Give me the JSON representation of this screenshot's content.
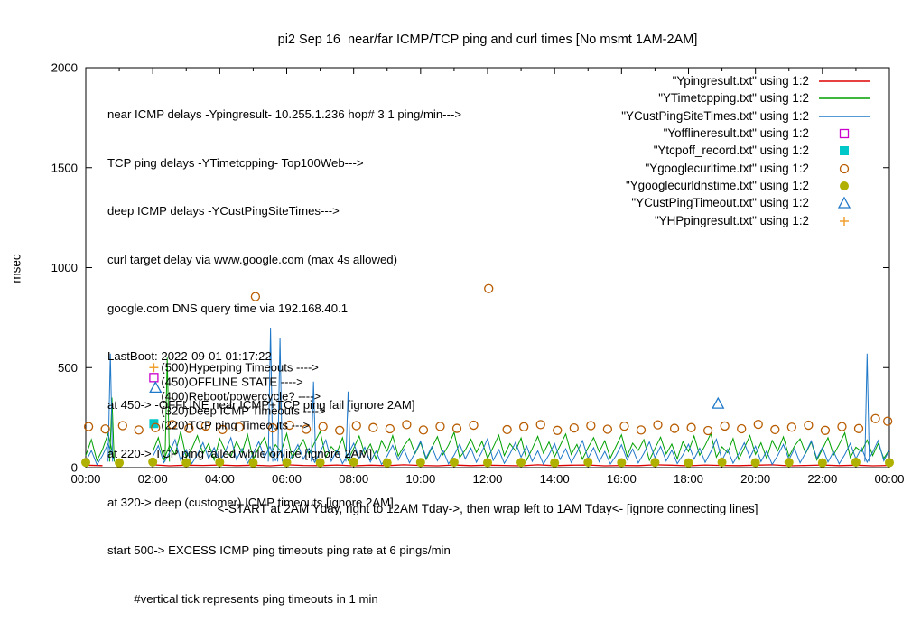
{
  "chart_data": {
    "type": "line",
    "title": "pi2 Sep 16  near/far ICMP/TCP ping and curl times [No msmt 1AM-2AM]",
    "ylabel": "msec",
    "xlabel": "<-START at 2AM Yday, right to 12AM Tday->, then wrap left to 1AM Tday<- [ignore connecting lines]",
    "ylim": [
      0,
      2000
    ],
    "x_minutes_range": [
      0,
      1440
    ],
    "x_ticks": [
      "00:00",
      "02:00",
      "04:00",
      "06:00",
      "08:00",
      "10:00",
      "12:00",
      "14:00",
      "16:00",
      "18:00",
      "20:00",
      "22:00",
      "00:00"
    ],
    "y_ticks": [
      0,
      500,
      1000,
      1500,
      2000
    ],
    "grid": false,
    "legend_position": "top-right",
    "annotations": [
      "near ICMP delays -Ypingresult- 10.255.1.236 hop# 3 1 ping/min--->",
      "TCP ping delays -YTimetcpping- Top100Web--->",
      "deep ICMP delays -YCustPingSiteTimes--->",
      "curl target delay via www.google.com (max 4s allowed)",
      "google.com DNS query time via 192.168.40.1",
      "LastBoot: 2022-09-01 01:17:22",
      "at 450-> -OFFLINE near ICMP+TCP ping fail [ignore 2AM]",
      "at 220-> TCP ping failed while online [ignore 2AM]",
      "at 320-> deep (customer) ICMP timeouts [ignore 2AM]",
      "start 500-> EXCESS ICMP ping timeouts ping rate at 6 pings/min",
      "        #vertical tick represents ping timeouts in 1 min"
    ],
    "level_labels": [
      {
        "value": 500,
        "text": "(500)Hyperping Timeouts ---->"
      },
      {
        "value": 450,
        "text": "(450)OFFLINE STATE ---->"
      },
      {
        "value": 400,
        "text": "(400)Reboot/powercycle? ---->"
      },
      {
        "value": 320,
        "text": "(320)Deep ICMP Timeouts ---->"
      },
      {
        "value": 220,
        "text": "(220)TCP ping Timeouts --->"
      }
    ],
    "series": [
      {
        "id": "Ypingresult",
        "label": "\"Ypingresult.txt\" using 1:2",
        "color": "#dd0000",
        "style": "line",
        "width": 1.3,
        "step": 30,
        "base": [
          12,
          10,
          null,
          null,
          14,
          9,
          12,
          11,
          13,
          10,
          12,
          9,
          14,
          11,
          10,
          13,
          9,
          12,
          10,
          14,
          11,
          9,
          13,
          10,
          12,
          11,
          9,
          14,
          10,
          12,
          13,
          9,
          11,
          10,
          14,
          12,
          9,
          13,
          11,
          10,
          12,
          14,
          9,
          11,
          13,
          10,
          12,
          9,
          11
        ]
      },
      {
        "id": "YTimetcpping",
        "label": "\"YTimetcpping.txt\" using 1:2",
        "color": "#00a000",
        "style": "line",
        "width": 1,
        "step": 10,
        "base": [
          60,
          140,
          35,
          90,
          170,
          45,
          null,
          null,
          null,
          null,
          null,
          null,
          80,
          150,
          40,
          110,
          65,
          180,
          50,
          95,
          160,
          70,
          120,
          38,
          145,
          85,
          55,
          130,
          75,
          165,
          42,
          100,
          150,
          60,
          115,
          80,
          170,
          48,
          92,
          140,
          66,
          125,
          180,
          52,
          105,
          74,
          150,
          36,
          96,
          158,
          68,
          118,
          44,
          135,
          82,
          160,
          58,
          108,
          146,
          70,
          126,
          40,
          98,
          155,
          64,
          112,
          176,
          50,
          88,
          142,
          76,
          132,
          46,
          102,
          162,
          60,
          120,
          84,
          148,
          38,
          94,
          156,
          72,
          128,
          54,
          110,
          168,
          66,
          116,
          42,
          100,
          150,
          78,
          134,
          48,
          106,
          164,
          58,
          122,
          86,
          140,
          36,
          96,
          152,
          68,
          118,
          44,
          130,
          80,
          158,
          62,
          112,
          170,
          52,
          104,
          74,
          146,
          40,
          98,
          160,
          66,
          124,
          46,
          136,
          84,
          154,
          56,
          108,
          144,
          72,
          128,
          38,
          92,
          150,
          64,
          116,
          174,
          50,
          102,
          80,
          138,
          60,
          120,
          46,
          90
        ],
        "spikes": [
          [
            47,
            350
          ],
          [
            146,
            550
          ]
        ]
      },
      {
        "id": "YCustPingSiteTimes",
        "label": "\"YCustPingSiteTimes.txt\" using 1:2",
        "color": "#1f78c8",
        "style": "line",
        "width": 1,
        "step": 10,
        "base": [
          30,
          85,
          15,
          60,
          120,
          40,
          null,
          null,
          null,
          null,
          null,
          null,
          55,
          110,
          25,
          75,
          140,
          35,
          90,
          20,
          65,
          125,
          45,
          100,
          30,
          80,
          150,
          40,
          95,
          22,
          70,
          130,
          50,
          105,
          35,
          85,
          18,
          60,
          115,
          42,
          96,
          26,
          78,
          138,
          32,
          88,
          20,
          66,
          122,
          46,
          102,
          28,
          82,
          16,
          58,
          112,
          38,
          92,
          24,
          74,
          132,
          48,
          104,
          34,
          86,
          19,
          62,
          118,
          44,
          98,
          27,
          80,
          145,
          36,
          90,
          21,
          68,
          126,
          52,
          108,
          31,
          84,
          17,
          64,
          120,
          41,
          94,
          25,
          76,
          135,
          47,
          100,
          29,
          81,
          18,
          59,
          114,
          39,
          93,
          23,
          72,
          128,
          49,
          106,
          33,
          87,
          20,
          63,
          117,
          43,
          97,
          26,
          79,
          142,
          37,
          91,
          22,
          69,
          124,
          51,
          107,
          30,
          83,
          16,
          61,
          116,
          40,
          95,
          24,
          75,
          133,
          46,
          101,
          28,
          80,
          19,
          65,
          121,
          44,
          99,
          27,
          77,
          136,
          34,
          88
        ],
        "spikes": [
          [
            44,
            570
          ],
          [
            331,
            700
          ],
          [
            348,
            650
          ],
          [
            408,
            430
          ],
          [
            470,
            380
          ],
          [
            1400,
            570
          ]
        ]
      },
      {
        "id": "Yofflineresult",
        "label": "\"Yofflineresult.txt\" using 1:2",
        "color": "#cc00cc",
        "style": "points",
        "marker": "square-open",
        "points": [
          [
            122,
            450
          ]
        ]
      },
      {
        "id": "Ytcpoff_record",
        "label": "\"Ytcpoff_record.txt\" using 1:2",
        "color": "#00c8c8",
        "style": "points",
        "marker": "square-filled",
        "points": [
          [
            122,
            220
          ]
        ]
      },
      {
        "id": "Ygooglecurltime",
        "label": "\"Ygooglecurltime.txt\" using 1:2",
        "color": "#b85c00",
        "style": "points",
        "marker": "circle-open",
        "points": [
          [
            5,
            205
          ],
          [
            35,
            193
          ],
          [
            66,
            210
          ],
          [
            95,
            188
          ],
          [
            125,
            200
          ],
          [
            155,
            215
          ],
          [
            185,
            196
          ],
          [
            215,
            208
          ],
          [
            245,
            190
          ],
          [
            275,
            202
          ],
          [
            304,
            855
          ],
          [
            335,
            198
          ],
          [
            365,
            212
          ],
          [
            395,
            192
          ],
          [
            425,
            205
          ],
          [
            455,
            186
          ],
          [
            485,
            210
          ],
          [
            515,
            200
          ],
          [
            545,
            194
          ],
          [
            575,
            215
          ],
          [
            605,
            188
          ],
          [
            635,
            206
          ],
          [
            665,
            196
          ],
          [
            695,
            212
          ],
          [
            722,
            895
          ],
          [
            755,
            190
          ],
          [
            785,
            204
          ],
          [
            815,
            215
          ],
          [
            845,
            186
          ],
          [
            875,
            198
          ],
          [
            905,
            210
          ],
          [
            935,
            192
          ],
          [
            965,
            207
          ],
          [
            995,
            188
          ],
          [
            1025,
            214
          ],
          [
            1055,
            196
          ],
          [
            1085,
            200
          ],
          [
            1115,
            185
          ],
          [
            1145,
            208
          ],
          [
            1175,
            194
          ],
          [
            1205,
            216
          ],
          [
            1235,
            190
          ],
          [
            1265,
            202
          ],
          [
            1295,
            212
          ],
          [
            1325,
            186
          ],
          [
            1355,
            205
          ],
          [
            1385,
            195
          ],
          [
            1415,
            245
          ],
          [
            1437,
            232
          ]
        ]
      },
      {
        "id": "Ygooglecurldnstime",
        "label": "\"Ygooglecurldnstime.txt\" using 1:2",
        "color": "#b0b000",
        "style": "points",
        "marker": "circle-filled",
        "points": [
          [
            0,
            26
          ],
          [
            60,
            24
          ],
          [
            120,
            28
          ],
          [
            180,
            25
          ],
          [
            240,
            27
          ],
          [
            300,
            24
          ],
          [
            360,
            26
          ],
          [
            420,
            25
          ],
          [
            480,
            28
          ],
          [
            540,
            24
          ],
          [
            600,
            26
          ],
          [
            660,
            27
          ],
          [
            720,
            25
          ],
          [
            780,
            26
          ],
          [
            840,
            24
          ],
          [
            900,
            27
          ],
          [
            960,
            25
          ],
          [
            1020,
            26
          ],
          [
            1080,
            24
          ],
          [
            1140,
            27
          ],
          [
            1200,
            25
          ],
          [
            1260,
            26
          ],
          [
            1320,
            24
          ],
          [
            1380,
            27
          ],
          [
            1440,
            25
          ]
        ]
      },
      {
        "id": "YCustPingTimeout",
        "label": "\"YCustPingTimeout.txt\" using 1:2",
        "color": "#1f78c8",
        "style": "points",
        "marker": "triangle-open",
        "points": [
          [
            125,
            400
          ],
          [
            1133,
            320
          ]
        ]
      },
      {
        "id": "YHPpingresult",
        "label": "\"YHPpingresult.txt\" using 1:2",
        "color": "#f0a030",
        "style": "points",
        "marker": "plus",
        "points": [
          [
            122,
            500
          ]
        ]
      }
    ]
  }
}
